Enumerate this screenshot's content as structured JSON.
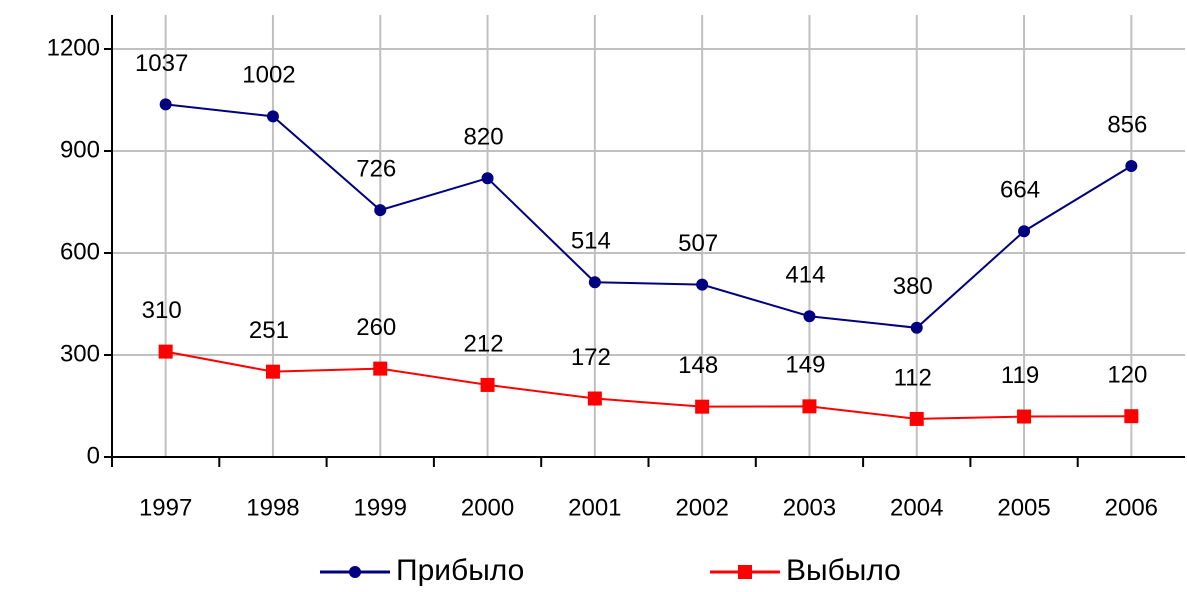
{
  "chart_data": {
    "type": "line",
    "categories": [
      "1997",
      "1998",
      "1999",
      "2000",
      "2001",
      "2002",
      "2003",
      "2004",
      "2005",
      "2006"
    ],
    "series": [
      {
        "name": "Прибыло",
        "color": "#000080",
        "marker": "circle",
        "values": [
          1037,
          1002,
          726,
          820,
          514,
          507,
          414,
          380,
          664,
          856
        ]
      },
      {
        "name": "Выбыло",
        "color": "#ff0000",
        "marker": "square",
        "values": [
          310,
          251,
          260,
          212,
          172,
          148,
          149,
          112,
          119,
          120
        ]
      }
    ],
    "ylim": [
      0,
      1300
    ],
    "yticks": [
      0,
      300,
      600,
      900,
      1200
    ],
    "grid": true,
    "legend": "bottom"
  }
}
